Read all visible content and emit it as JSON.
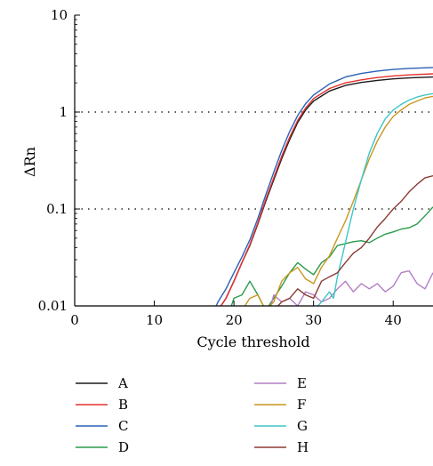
{
  "chart_data": {
    "type": "line",
    "xlabel": "Cycle threshold",
    "ylabel": "ΔRn",
    "xlim": [
      0,
      45
    ],
    "ylim": [
      0.01,
      10
    ],
    "yscale": "log",
    "x_ticks": [
      0,
      10,
      20,
      30,
      40
    ],
    "x_tick_labels": [
      "0",
      "10",
      "20",
      "30",
      "40"
    ],
    "y_ticks": [
      0.01,
      0.1,
      1,
      10
    ],
    "y_tick_labels": [
      "0.01",
      "0.1",
      "1",
      "10"
    ],
    "grid": "dotted horizontal at 0.1 and 1",
    "legend_position": "bottom, two columns",
    "series": [
      {
        "name": "A",
        "color": "#1a1a1a",
        "points": [
          [
            18,
            0.009
          ],
          [
            19,
            0.012
          ],
          [
            20,
            0.018
          ],
          [
            21,
            0.028
          ],
          [
            22,
            0.042
          ],
          [
            23,
            0.07
          ],
          [
            24,
            0.12
          ],
          [
            25,
            0.2
          ],
          [
            26,
            0.33
          ],
          [
            27,
            0.52
          ],
          [
            28,
            0.78
          ],
          [
            29,
            1.05
          ],
          [
            30,
            1.3
          ],
          [
            32,
            1.65
          ],
          [
            34,
            1.88
          ],
          [
            36,
            2.02
          ],
          [
            38,
            2.12
          ],
          [
            40,
            2.2
          ],
          [
            42,
            2.25
          ],
          [
            45,
            2.3
          ]
        ]
      },
      {
        "name": "B",
        "color": "#e3312f",
        "points": [
          [
            18,
            0.009
          ],
          [
            19,
            0.012
          ],
          [
            20,
            0.018
          ],
          [
            21,
            0.028
          ],
          [
            22,
            0.043
          ],
          [
            23,
            0.072
          ],
          [
            24,
            0.125
          ],
          [
            25,
            0.21
          ],
          [
            26,
            0.35
          ],
          [
            27,
            0.55
          ],
          [
            28,
            0.82
          ],
          [
            29,
            1.1
          ],
          [
            30,
            1.38
          ],
          [
            32,
            1.75
          ],
          [
            34,
            2.0
          ],
          [
            36,
            2.15
          ],
          [
            38,
            2.27
          ],
          [
            40,
            2.36
          ],
          [
            42,
            2.42
          ],
          [
            45,
            2.48
          ]
        ]
      },
      {
        "name": "C",
        "color": "#2a62b5",
        "points": [
          [
            17.5,
            0.009
          ],
          [
            18,
            0.011
          ],
          [
            19,
            0.015
          ],
          [
            20,
            0.022
          ],
          [
            21,
            0.032
          ],
          [
            22,
            0.048
          ],
          [
            23,
            0.08
          ],
          [
            24,
            0.14
          ],
          [
            25,
            0.24
          ],
          [
            26,
            0.4
          ],
          [
            27,
            0.63
          ],
          [
            28,
            0.92
          ],
          [
            29,
            1.22
          ],
          [
            30,
            1.5
          ],
          [
            32,
            1.95
          ],
          [
            34,
            2.3
          ],
          [
            36,
            2.5
          ],
          [
            38,
            2.65
          ],
          [
            40,
            2.75
          ],
          [
            42,
            2.82
          ],
          [
            45,
            2.88
          ]
        ]
      },
      {
        "name": "D",
        "color": "#2a9a4a",
        "points": [
          [
            19.5,
            0.009
          ],
          [
            20,
            0.012
          ],
          [
            21,
            0.013
          ],
          [
            22,
            0.018
          ],
          [
            23,
            0.013
          ],
          [
            24,
            0.009
          ],
          [
            25,
            0.012
          ],
          [
            26,
            0.016
          ],
          [
            27,
            0.022
          ],
          [
            28,
            0.028
          ],
          [
            29,
            0.024
          ],
          [
            30,
            0.021
          ],
          [
            31,
            0.028
          ],
          [
            32,
            0.032
          ],
          [
            33,
            0.042
          ],
          [
            34,
            0.044
          ],
          [
            35,
            0.046
          ],
          [
            36,
            0.047
          ],
          [
            37,
            0.045
          ],
          [
            38,
            0.05
          ],
          [
            39,
            0.055
          ],
          [
            40,
            0.058
          ],
          [
            41,
            0.062
          ],
          [
            42,
            0.064
          ],
          [
            43,
            0.07
          ],
          [
            44,
            0.085
          ],
          [
            45,
            0.105
          ]
        ]
      },
      {
        "name": "E",
        "color": "#b27ec3",
        "points": [
          [
            24.5,
            0.009
          ],
          [
            25,
            0.013
          ],
          [
            26,
            0.011
          ],
          [
            27,
            0.012
          ],
          [
            28,
            0.01
          ],
          [
            29,
            0.014
          ],
          [
            30,
            0.013
          ],
          [
            31,
            0.011
          ],
          [
            32,
            0.012
          ],
          [
            33,
            0.015
          ],
          [
            34,
            0.018
          ],
          [
            35,
            0.014
          ],
          [
            36,
            0.017
          ],
          [
            37,
            0.015
          ],
          [
            38,
            0.017
          ],
          [
            39,
            0.014
          ],
          [
            40,
            0.016
          ],
          [
            41,
            0.022
          ],
          [
            42,
            0.023
          ],
          [
            43,
            0.017
          ],
          [
            44,
            0.015
          ],
          [
            45,
            0.022
          ]
        ]
      },
      {
        "name": "F",
        "color": "#c9961f",
        "points": [
          [
            21,
            0.009
          ],
          [
            22,
            0.012
          ],
          [
            23,
            0.013
          ],
          [
            24,
            0.009
          ],
          [
            25,
            0.011
          ],
          [
            26,
            0.018
          ],
          [
            27,
            0.022
          ],
          [
            28,
            0.025
          ],
          [
            29,
            0.019
          ],
          [
            30,
            0.017
          ],
          [
            31,
            0.025
          ],
          [
            32,
            0.033
          ],
          [
            33,
            0.05
          ],
          [
            34,
            0.075
          ],
          [
            35,
            0.12
          ],
          [
            36,
            0.2
          ],
          [
            37,
            0.33
          ],
          [
            38,
            0.5
          ],
          [
            39,
            0.7
          ],
          [
            40,
            0.9
          ],
          [
            41,
            1.05
          ],
          [
            42,
            1.2
          ],
          [
            43,
            1.3
          ],
          [
            44,
            1.4
          ],
          [
            45,
            1.45
          ]
        ]
      },
      {
        "name": "G",
        "color": "#3ec6c6",
        "points": [
          [
            30,
            0.009
          ],
          [
            31,
            0.011
          ],
          [
            32,
            0.014
          ],
          [
            32.5,
            0.012
          ],
          [
            33,
            0.02
          ],
          [
            34,
            0.045
          ],
          [
            35,
            0.1
          ],
          [
            36,
            0.2
          ],
          [
            37,
            0.38
          ],
          [
            38,
            0.6
          ],
          [
            39,
            0.85
          ],
          [
            40,
            1.05
          ],
          [
            41,
            1.2
          ],
          [
            42,
            1.33
          ],
          [
            43,
            1.43
          ],
          [
            44,
            1.5
          ],
          [
            45,
            1.55
          ]
        ]
      },
      {
        "name": "H",
        "color": "#8b3a33",
        "points": [
          [
            25,
            0.009
          ],
          [
            26,
            0.011
          ],
          [
            27,
            0.012
          ],
          [
            28,
            0.015
          ],
          [
            29,
            0.013
          ],
          [
            30,
            0.012
          ],
          [
            31,
            0.018
          ],
          [
            32,
            0.02
          ],
          [
            33,
            0.022
          ],
          [
            34,
            0.028
          ],
          [
            35,
            0.035
          ],
          [
            36,
            0.04
          ],
          [
            37,
            0.05
          ],
          [
            38,
            0.065
          ],
          [
            39,
            0.08
          ],
          [
            40,
            0.1
          ],
          [
            41,
            0.12
          ],
          [
            42,
            0.15
          ],
          [
            43,
            0.18
          ],
          [
            44,
            0.21
          ],
          [
            45,
            0.22
          ]
        ]
      }
    ]
  }
}
